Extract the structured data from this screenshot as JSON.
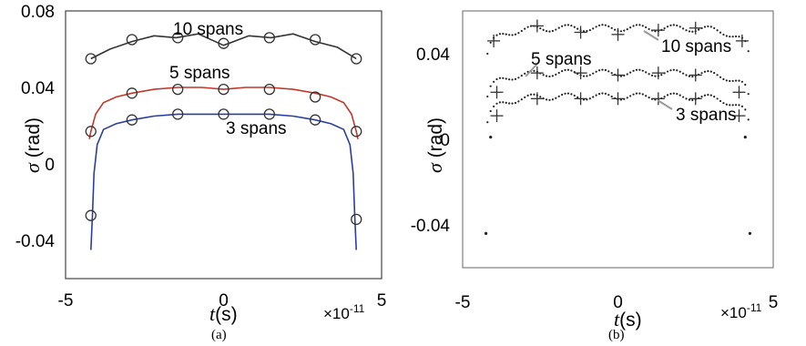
{
  "chart_data": [
    {
      "panel_label": "(a)",
      "type": "line",
      "xlabel_italic": "t",
      "xlabel_rest": "(s)",
      "ylabel_italic": "σ",
      "ylabel_rest": " (rad)",
      "x_exponent_base": "×10",
      "x_exponent_power": "-11",
      "xlim": [
        -5,
        5
      ],
      "ylim": [
        -0.06,
        0.08
      ],
      "xticks": [
        "-5",
        "0",
        "5"
      ],
      "xtick_values": [
        -5,
        0,
        5
      ],
      "yticks": [
        "-0.04",
        "0",
        "0.04",
        "0.08"
      ],
      "ytick_values": [
        -0.04,
        0,
        0.04,
        0.08
      ],
      "grid": false,
      "series": [
        {
          "name": "10 spans",
          "color": "#333333",
          "marker": "circle",
          "x": [
            -4.2,
            -3.6,
            -2.9,
            -2.2,
            -1.5,
            -0.8,
            0.0,
            0.8,
            1.5,
            2.2,
            2.9,
            3.6,
            4.2
          ],
          "y": [
            0.055,
            0.06,
            0.064,
            0.067,
            0.066,
            0.068,
            0.062,
            0.067,
            0.066,
            0.068,
            0.064,
            0.061,
            0.055
          ],
          "marker_x": [
            -4.2,
            -2.9,
            -1.45,
            0.0,
            1.45,
            2.9,
            4.2
          ],
          "marker_y": [
            0.055,
            0.065,
            0.066,
            0.063,
            0.066,
            0.065,
            0.055
          ]
        },
        {
          "name": "5 spans",
          "color": "#c0392b",
          "marker": "circle",
          "x": [
            -4.25,
            -4.2,
            -4.05,
            -3.8,
            -3.4,
            -2.9,
            -2.2,
            -1.45,
            -0.7,
            0.0,
            0.7,
            1.45,
            2.2,
            2.9,
            3.4,
            3.8,
            4.05,
            4.2,
            4.25
          ],
          "y": [
            0.013,
            0.017,
            0.026,
            0.032,
            0.035,
            0.037,
            0.039,
            0.04,
            0.04,
            0.039,
            0.04,
            0.04,
            0.039,
            0.037,
            0.035,
            0.032,
            0.026,
            0.017,
            0.013
          ],
          "marker_x": [
            -4.2,
            -2.9,
            -1.45,
            0.0,
            1.45,
            2.9,
            4.2
          ],
          "marker_y": [
            0.017,
            0.037,
            0.039,
            0.039,
            0.039,
            0.035,
            0.017
          ]
        },
        {
          "name": "3 spans",
          "color": "#2a3f9d",
          "marker": "circle",
          "x": [
            -4.2,
            -4.15,
            -4.1,
            -4.0,
            -3.8,
            -3.4,
            -2.9,
            -2.2,
            -1.45,
            -0.7,
            0.0,
            0.7,
            1.45,
            2.2,
            2.9,
            3.4,
            3.8,
            4.0,
            4.1,
            4.15,
            4.2
          ],
          "y": [
            -0.045,
            -0.027,
            -0.005,
            0.01,
            0.018,
            0.021,
            0.023,
            0.025,
            0.026,
            0.026,
            0.026,
            0.026,
            0.026,
            0.025,
            0.023,
            0.021,
            0.018,
            0.01,
            -0.005,
            -0.027,
            -0.045
          ],
          "marker_x": [
            -4.2,
            -2.9,
            -1.45,
            0.0,
            1.45,
            2.9,
            4.2
          ],
          "marker_y": [
            -0.027,
            0.023,
            0.026,
            0.026,
            0.026,
            0.023,
            -0.029
          ]
        }
      ]
    },
    {
      "panel_label": "(b)",
      "type": "scatter",
      "xlabel_italic": "t",
      "xlabel_rest": "(s)",
      "ylabel_italic": "σ",
      "ylabel_rest": " (rad)",
      "x_exponent_base": "×10",
      "x_exponent_power": "-11",
      "xlim": [
        -5,
        5
      ],
      "ylim": [
        -0.06,
        0.06
      ],
      "xticks": [
        "-5",
        "0",
        "5"
      ],
      "xtick_values": [
        -5,
        0,
        5
      ],
      "yticks": [
        "-0.04",
        "0",
        "0.04"
      ],
      "ytick_values": [
        -0.04,
        0,
        0.04
      ],
      "grid": false,
      "series": [
        {
          "name": "10 spans",
          "color": "#222222",
          "marker": "plus",
          "x_start": -4.2,
          "x_end": 4.2,
          "n": 85,
          "y_edge": 0.04,
          "y_mid": 0.052,
          "marker_x": [
            -4.0,
            -2.6,
            -1.2,
            0.0,
            1.3,
            2.5,
            4.0
          ],
          "marker_y": [
            0.046,
            0.053,
            0.05,
            0.049,
            0.051,
            0.052,
            0.046
          ]
        },
        {
          "name": "5 spans",
          "color": "#222222",
          "marker": "plus",
          "x_start": -4.2,
          "x_end": 4.2,
          "n": 85,
          "y_edge": 0.02,
          "y_mid": 0.031,
          "marker_x": [
            -3.9,
            -2.6,
            -1.2,
            0.0,
            1.3,
            2.5,
            3.9
          ],
          "marker_y": [
            0.022,
            0.031,
            0.031,
            0.03,
            0.031,
            0.03,
            0.022
          ]
        },
        {
          "name": "3 spans",
          "color": "#222222",
          "marker": "plus",
          "x_start": -4.2,
          "x_end": 4.2,
          "n": 85,
          "y_edge": 0.008,
          "y_mid": 0.02,
          "marker_x": [
            -3.9,
            -2.6,
            -1.2,
            0.0,
            1.3,
            2.5,
            3.9
          ],
          "marker_y": [
            0.011,
            0.019,
            0.019,
            0.019,
            0.019,
            0.019,
            0.011
          ]
        }
      ],
      "outliers": {
        "x": [
          -4.25,
          -4.1,
          4.1,
          4.25
        ],
        "y": [
          -0.044,
          0.001,
          0.001,
          -0.044
        ]
      }
    }
  ]
}
